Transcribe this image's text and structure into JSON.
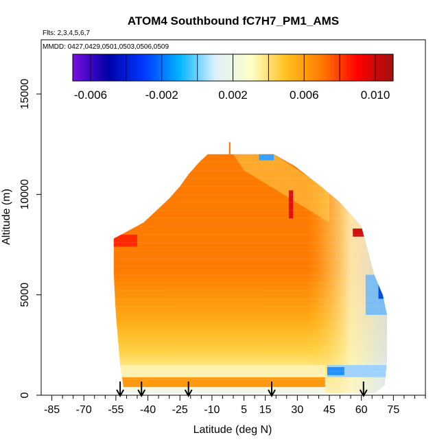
{
  "chart_data": {
    "type": "heatmap",
    "title": "ATOM4 Southbound fC7H7_PM1_AMS",
    "flights_label": "Flts: 2,3,4,5,6,7",
    "mmdd_label": "MMDD: 0427,0429,0501,0503,0506,0509",
    "xlabel": "Latitude (deg N)",
    "ylabel": "Altitude (m)",
    "xlim": [
      -90,
      90
    ],
    "ylim": [
      0,
      17700
    ],
    "x_ticks": [
      -85,
      -70,
      -55,
      -40,
      -25,
      -10,
      5,
      15,
      30,
      45,
      60,
      75
    ],
    "x_tick_labels": [
      "-85",
      "-70",
      "-55",
      "-40",
      "-25",
      "-10",
      "5",
      "15",
      "30",
      "45",
      "60",
      "75"
    ],
    "y_ticks": [
      0,
      5000,
      10000,
      15000
    ],
    "y_tick_labels": [
      "0",
      "5000",
      "10000",
      "15000"
    ],
    "colorbar": {
      "range": [
        -0.007,
        0.011
      ],
      "ticks": [
        -0.006,
        -0.002,
        0.002,
        0.006,
        0.01
      ],
      "tick_labels": [
        "-0.006",
        "-0.002",
        "0.002",
        "0.006",
        "0.010"
      ],
      "colors": [
        "#7a10e0",
        "#0000a8",
        "#0038ff",
        "#00b4ff",
        "#dcefff",
        "#ffffc8",
        "#ffc020",
        "#ff7a00",
        "#ff0000",
        "#a01010"
      ]
    },
    "arrows_lat": [
      -53,
      -43,
      -21,
      18,
      61
    ],
    "data_envelope": [
      [
        -56,
        7800
      ],
      [
        -49,
        8200
      ],
      [
        -42,
        8600
      ],
      [
        -36,
        9200
      ],
      [
        -30,
        9800
      ],
      [
        -25,
        10400
      ],
      [
        -21,
        11000
      ],
      [
        -16,
        11600
      ],
      [
        -12,
        12000
      ],
      [
        19,
        12000
      ],
      [
        29,
        11400
      ],
      [
        41,
        10400
      ],
      [
        50,
        9600
      ],
      [
        55,
        9000
      ],
      [
        60,
        8400
      ],
      [
        63,
        7200
      ],
      [
        66,
        6000
      ],
      [
        70,
        5000
      ],
      [
        72,
        4000
      ],
      [
        72,
        3000
      ],
      [
        72,
        1800
      ],
      [
        71,
        500
      ],
      [
        66,
        100
      ],
      [
        43,
        100
      ],
      [
        -51,
        100
      ],
      [
        -53,
        1500
      ],
      [
        -55,
        4000
      ],
      [
        -56,
        6000
      ]
    ]
  }
}
